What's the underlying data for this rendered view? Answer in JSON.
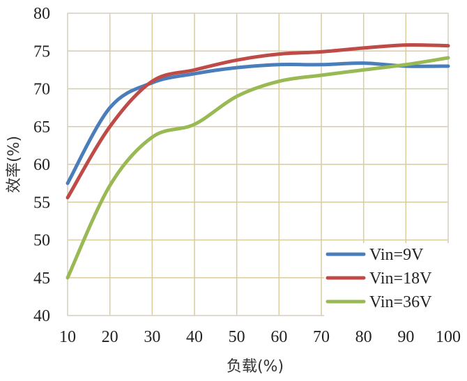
{
  "chart_data": {
    "type": "line",
    "xlabel": "负载(%)",
    "ylabel": "效率(%)",
    "xlim": [
      10,
      100
    ],
    "ylim": [
      40,
      80
    ],
    "x_ticks": [
      10,
      20,
      30,
      40,
      50,
      60,
      70,
      80,
      90,
      100
    ],
    "y_ticks": [
      40,
      45,
      50,
      55,
      60,
      65,
      70,
      75,
      80
    ],
    "grid": true,
    "legend_position": "bottom-right",
    "series": [
      {
        "name": "Vin=9V",
        "color": "#4a7ebb",
        "x": [
          10,
          20,
          30,
          40,
          50,
          60,
          70,
          80,
          90,
          100
        ],
        "y": [
          57.5,
          67.5,
          70.8,
          72,
          72.8,
          73.2,
          73.2,
          73.4,
          73,
          73
        ]
      },
      {
        "name": "Vin=18V",
        "color": "#be4b48",
        "x": [
          10,
          20,
          30,
          40,
          50,
          60,
          70,
          80,
          90,
          100
        ],
        "y": [
          55.6,
          65,
          71,
          72.5,
          73.8,
          74.6,
          74.9,
          75.4,
          75.8,
          75.7
        ]
      },
      {
        "name": "Vin=36V",
        "color": "#98b954",
        "x": [
          10,
          20,
          30,
          40,
          50,
          60,
          70,
          80,
          90,
          100
        ],
        "y": [
          45,
          57.2,
          63.6,
          65.3,
          69,
          71,
          71.8,
          72.5,
          73.2,
          74.1
        ]
      }
    ]
  }
}
